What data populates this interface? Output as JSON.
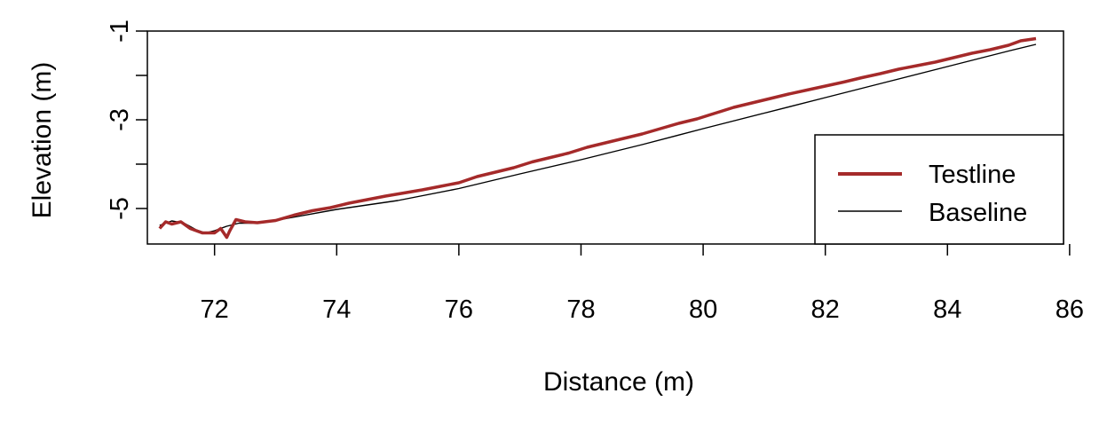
{
  "chart_data": {
    "type": "line",
    "title": "",
    "xlabel": "Distance (m)",
    "ylabel": "Elevation (m)",
    "xlim": [
      70.9,
      85.9
    ],
    "ylim": [
      -5.8,
      -1.0
    ],
    "xticks": [
      72,
      74,
      76,
      78,
      80,
      82,
      84,
      86
    ],
    "yticks": [
      -1,
      -3,
      -5
    ],
    "grid": false,
    "legend_position": "bottom-right",
    "series": [
      {
        "name": "Testline",
        "color": "#a52a2a",
        "x": [
          71.1,
          71.2,
          71.3,
          71.45,
          71.6,
          71.8,
          72.0,
          72.1,
          72.2,
          72.25,
          72.35,
          72.5,
          72.7,
          73.0,
          73.3,
          73.6,
          73.9,
          74.2,
          74.5,
          74.8,
          75.1,
          75.4,
          75.7,
          76.0,
          76.3,
          76.6,
          76.9,
          77.2,
          77.5,
          77.8,
          78.1,
          78.4,
          78.7,
          79.0,
          79.3,
          79.6,
          79.9,
          80.2,
          80.5,
          80.8,
          81.1,
          81.4,
          81.7,
          82.0,
          82.3,
          82.6,
          82.9,
          83.2,
          83.5,
          83.8,
          84.1,
          84.4,
          84.7,
          85.0,
          85.2,
          85.45
        ],
        "values": [
          -5.45,
          -5.3,
          -5.35,
          -5.3,
          -5.45,
          -5.55,
          -5.55,
          -5.45,
          -5.65,
          -5.5,
          -5.25,
          -5.3,
          -5.32,
          -5.27,
          -5.15,
          -5.05,
          -4.98,
          -4.88,
          -4.8,
          -4.72,
          -4.65,
          -4.58,
          -4.5,
          -4.42,
          -4.28,
          -4.18,
          -4.08,
          -3.95,
          -3.85,
          -3.75,
          -3.62,
          -3.52,
          -3.42,
          -3.32,
          -3.2,
          -3.08,
          -2.98,
          -2.85,
          -2.72,
          -2.62,
          -2.52,
          -2.42,
          -2.33,
          -2.24,
          -2.15,
          -2.05,
          -1.96,
          -1.86,
          -1.78,
          -1.7,
          -1.6,
          -1.5,
          -1.42,
          -1.32,
          -1.22,
          -1.17
        ]
      },
      {
        "name": "Baseline",
        "color": "#000000",
        "x": [
          71.1,
          71.3,
          71.5,
          71.7,
          71.85,
          72.0,
          72.2,
          72.4,
          72.6,
          72.9,
          73.2,
          74.0,
          75.0,
          76.0,
          77.0,
          78.0,
          79.0,
          80.0,
          81.0,
          82.0,
          83.0,
          84.0,
          85.0,
          85.45
        ],
        "values": [
          -5.38,
          -5.28,
          -5.33,
          -5.48,
          -5.55,
          -5.5,
          -5.4,
          -5.33,
          -5.33,
          -5.3,
          -5.22,
          -5.02,
          -4.82,
          -4.55,
          -4.22,
          -3.9,
          -3.56,
          -3.2,
          -2.85,
          -2.5,
          -2.15,
          -1.8,
          -1.45,
          -1.3
        ]
      }
    ]
  }
}
